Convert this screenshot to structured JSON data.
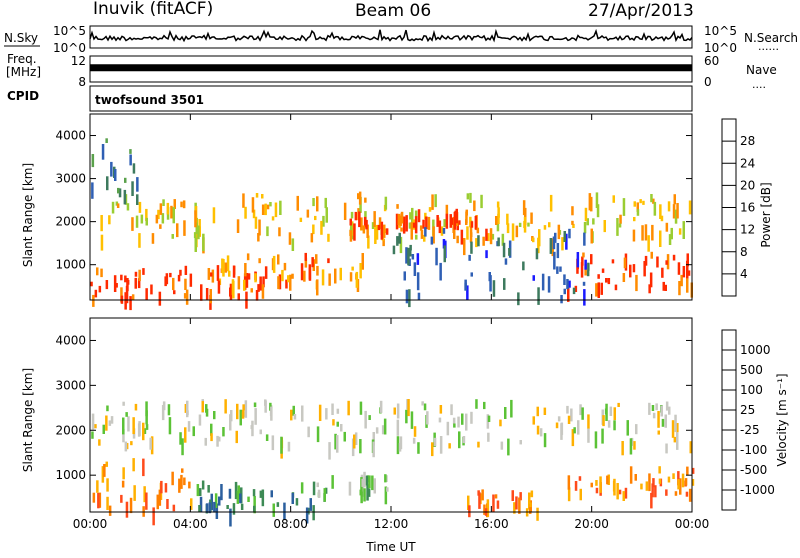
{
  "header": {
    "station": "Inuvik (fitACF)",
    "beam": "Beam 06",
    "date": "27/Apr/2013"
  },
  "side_labels": {
    "nsky": "N.Sky",
    "nsearch": "N.Search",
    "nsearch_dots": "......",
    "freq_line1": "Freq.",
    "freq_line2": "[MHz]",
    "nave": "Nave",
    "nave_dots": "....",
    "cpid": "CPID",
    "cpid_value": "twofsound 3501"
  },
  "chart_data": [
    {
      "type": "line",
      "id": "noise",
      "left_ticks": [
        "10^5",
        "10^0"
      ],
      "right_ticks": [
        "10^5",
        "10^0"
      ],
      "x_range_hours": [
        0,
        24
      ],
      "level_fraction": 0.45
    },
    {
      "type": "line",
      "id": "frequency",
      "left_ticks": [
        "12",
        "8"
      ],
      "right_ticks": [
        "60",
        "0"
      ],
      "x_range_hours": [
        0,
        24
      ],
      "level_fraction": 0.55
    },
    {
      "type": "heatmap",
      "id": "power",
      "ylabel": "Slant Range [km]",
      "ylim": [
        180,
        4500
      ],
      "yticks": [
        1000,
        2000,
        3000,
        4000
      ],
      "x_range_hours": [
        0,
        24
      ],
      "colorbar": {
        "label": "Power [dB]",
        "levels": [
          "4",
          "8",
          "12",
          "16",
          "20",
          "24",
          "28"
        ],
        "colors": [
          "#1a1aff",
          "#2f5fb4",
          "#3d7a5e",
          "#5aa14b",
          "#9acd32",
          "#ffc000",
          "#ff8c00",
          "#ff2a00"
        ]
      },
      "echo_regions": [
        {
          "x0": 0.0,
          "x1": 7.0,
          "r0": 250,
          "r1": 1000,
          "level": 7
        },
        {
          "x0": 5.0,
          "x1": 11.0,
          "r0": 600,
          "r1": 1300,
          "level": 6
        },
        {
          "x0": 0.0,
          "x1": 24.0,
          "r0": 1600,
          "r1": 2700,
          "level": 5
        },
        {
          "x0": 10.0,
          "x1": 16.0,
          "r0": 1800,
          "r1": 2300,
          "level": 7
        },
        {
          "x0": 19.0,
          "x1": 24.0,
          "r0": 500,
          "r1": 1300,
          "level": 7
        },
        {
          "x0": 12.0,
          "x1": 20.0,
          "r0": 200,
          "r1": 1900,
          "level": 1
        },
        {
          "x0": 0.0,
          "x1": 2.0,
          "r0": 2500,
          "r1": 4000,
          "level": 2
        }
      ]
    },
    {
      "type": "heatmap",
      "id": "velocity",
      "ylabel": "Slant Range [km]",
      "xlabel": "Time UT",
      "ylim": [
        180,
        4500
      ],
      "yticks": [
        1000,
        2000,
        3000,
        4000
      ],
      "x_range_hours": [
        0,
        24
      ],
      "xticks": [
        "00:00",
        "04:00",
        "08:00",
        "12:00",
        "16:00",
        "20:00",
        "00:00"
      ],
      "colorbar": {
        "label": "Velocity [m s⁻¹]",
        "levels": [
          "1000",
          "500",
          "100",
          "25",
          "-25",
          "-100",
          "-500",
          "-1000"
        ],
        "colors": [
          "#1a3fbf",
          "#2b5f9e",
          "#3d8a55",
          "#5bc236",
          "#c8c8c2",
          "#ffb000",
          "#ff8000",
          "#ff4a1a",
          "#ff0000"
        ]
      },
      "echo_regions": [
        {
          "x0": 0.0,
          "x1": 24.0,
          "r0": 1700,
          "r1": 2700,
          "level": 4
        },
        {
          "x0": 0.0,
          "x1": 4.0,
          "r0": 250,
          "r1": 1400,
          "level": 6
        },
        {
          "x0": 4.0,
          "x1": 9.0,
          "r0": 250,
          "r1": 900,
          "level": 2
        },
        {
          "x0": 9.0,
          "x1": 12.0,
          "r0": 600,
          "r1": 1100,
          "level": 3
        },
        {
          "x0": 15.0,
          "x1": 18.0,
          "r0": 250,
          "r1": 700,
          "level": 6
        },
        {
          "x0": 19.0,
          "x1": 24.0,
          "r0": 600,
          "r1": 1200,
          "level": 6
        }
      ]
    }
  ]
}
